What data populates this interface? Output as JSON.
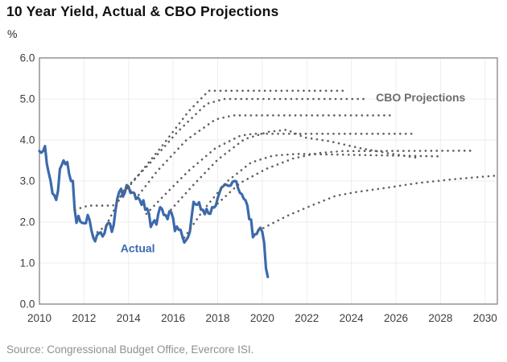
{
  "header": {
    "title": "10 Year Yield, Actual & CBO Projections",
    "unit": "%"
  },
  "footer": {
    "source": "Source: Congressional Budget Office, Evercore ISI."
  },
  "colors": {
    "actual": "#3b6aad",
    "projection": "#5f5f5f",
    "grid": "#ededed",
    "plot_border": "#999999",
    "axis_text": "#3f3f3f",
    "title_text": "#111111",
    "source_text": "#8f8f8f",
    "cbo_label": "#6e6e6e"
  },
  "chart_data": {
    "type": "line",
    "title": "10 Year Yield, Actual & CBO Projections",
    "xlabel": "",
    "ylabel": "%",
    "xlim": [
      2010,
      2030.55
    ],
    "ylim": [
      0,
      6
    ],
    "grid": true,
    "legend_position": "none",
    "x_ticks": [
      2010,
      2012,
      2014,
      2016,
      2018,
      2020,
      2022,
      2024,
      2026,
      2028,
      2030
    ],
    "y_ticks": [
      0,
      1,
      2,
      3,
      4,
      5,
      6
    ],
    "y_tick_labels": [
      "0.0",
      "1.0",
      "2.0",
      "3.0",
      "4.0",
      "5.0",
      "6.0"
    ],
    "annotations": [
      {
        "id": "actual-label",
        "text": "Actual",
        "x": 2013.64,
        "y": 1.26,
        "color_key": "actual"
      },
      {
        "id": "cbo-projections-label",
        "text": "CBO Projections",
        "x": 2025.1,
        "y": 4.94,
        "color_key": "cbo_label"
      }
    ],
    "series": [
      {
        "name": "Actual",
        "style": "solid",
        "x_start": 2010.0,
        "x_step": 0.0833333,
        "values": [
          3.73,
          3.69,
          3.73,
          3.85,
          3.42,
          3.2,
          3.01,
          2.7,
          2.65,
          2.54,
          2.76,
          3.29,
          3.39,
          3.5,
          3.41,
          3.46,
          3.17,
          3.0,
          3.0,
          2.3,
          1.98,
          2.15,
          2.01,
          1.98,
          1.97,
          1.97,
          2.17,
          2.05,
          1.8,
          1.62,
          1.53,
          1.68,
          1.72,
          1.75,
          1.65,
          1.72,
          1.91,
          1.98,
          1.96,
          1.76,
          1.93,
          2.3,
          2.58,
          2.74,
          2.81,
          2.62,
          2.72,
          2.9,
          2.86,
          2.71,
          2.72,
          2.71,
          2.56,
          2.6,
          2.54,
          2.42,
          2.53,
          2.3,
          2.33,
          2.21,
          1.88,
          1.98,
          2.04,
          1.94,
          2.2,
          2.36,
          2.32,
          2.17,
          2.17,
          2.07,
          2.26,
          2.24,
          2.09,
          1.78,
          1.89,
          1.81,
          1.81,
          1.64,
          1.5,
          1.56,
          1.63,
          1.76,
          2.14,
          2.49,
          2.43,
          2.42,
          2.48,
          2.3,
          2.3,
          2.19,
          2.32,
          2.21,
          2.2,
          2.36,
          2.35,
          2.4,
          2.58,
          2.72,
          2.84,
          2.87,
          2.92,
          2.9,
          2.88,
          2.89,
          2.98,
          3.0,
          2.99,
          2.82,
          2.71,
          2.68,
          2.57,
          2.53,
          2.4,
          2.07,
          2.06,
          1.63,
          1.7,
          1.71,
          1.81,
          1.86,
          1.76,
          1.5,
          0.87,
          0.66
        ]
      },
      {
        "name": "CBO projection 2012",
        "style": "dotted",
        "points": [
          [
            2011.6,
            2.3
          ],
          [
            2012.2,
            2.4
          ],
          [
            2013.3,
            2.4
          ],
          [
            2014.3,
            3.05
          ],
          [
            2015.5,
            3.85
          ],
          [
            2016.7,
            4.7
          ],
          [
            2017.6,
            5.2
          ],
          [
            2023.7,
            5.2
          ]
        ]
      },
      {
        "name": "CBO projection 2013",
        "style": "dotted",
        "points": [
          [
            2012.4,
            1.67
          ],
          [
            2013.0,
            1.92
          ],
          [
            2013.8,
            2.78
          ],
          [
            2014.9,
            3.4
          ],
          [
            2016.2,
            4.2
          ],
          [
            2017.5,
            4.88
          ],
          [
            2018.3,
            5.0
          ],
          [
            2024.6,
            5.0
          ]
        ]
      },
      {
        "name": "CBO projection 2014",
        "style": "dotted",
        "points": [
          [
            2013.9,
            2.85
          ],
          [
            2014.4,
            2.62
          ],
          [
            2015.3,
            3.25
          ],
          [
            2016.6,
            4.0
          ],
          [
            2017.9,
            4.5
          ],
          [
            2018.7,
            4.6
          ],
          [
            2025.8,
            4.6
          ]
        ]
      },
      {
        "name": "CBO projection 2015",
        "style": "dotted",
        "points": [
          [
            2014.8,
            2.2
          ],
          [
            2015.6,
            2.65
          ],
          [
            2016.7,
            3.25
          ],
          [
            2017.9,
            3.8
          ],
          [
            2019.0,
            4.1
          ],
          [
            2019.6,
            4.15
          ],
          [
            2026.7,
            4.15
          ]
        ]
      },
      {
        "name": "CBO projection 2016",
        "style": "dotted",
        "points": [
          [
            2015.9,
            2.3
          ],
          [
            2016.9,
            2.9
          ],
          [
            2018.0,
            3.52
          ],
          [
            2019.2,
            4.02
          ],
          [
            2020.3,
            4.2
          ],
          [
            2021.1,
            4.25
          ],
          [
            2021.9,
            4.06
          ],
          [
            2023.0,
            3.97
          ],
          [
            2024.4,
            3.8
          ],
          [
            2025.6,
            3.68
          ],
          [
            2026.9,
            3.57
          ]
        ]
      },
      {
        "name": "CBO projection 2017",
        "style": "dotted",
        "points": [
          [
            2016.5,
            1.62
          ],
          [
            2017.3,
            2.25
          ],
          [
            2018.4,
            2.98
          ],
          [
            2019.5,
            3.45
          ],
          [
            2020.5,
            3.62
          ],
          [
            2021.6,
            3.66
          ],
          [
            2028.0,
            3.6
          ]
        ]
      },
      {
        "name": "CBO projection 2018",
        "style": "dotted",
        "points": [
          [
            2018.0,
            2.45
          ],
          [
            2019.0,
            2.95
          ],
          [
            2020.2,
            3.3
          ],
          [
            2021.4,
            3.55
          ],
          [
            2022.5,
            3.68
          ],
          [
            2023.6,
            3.73
          ],
          [
            2029.5,
            3.74
          ]
        ]
      },
      {
        "name": "CBO projection 2020",
        "style": "dotted",
        "points": [
          [
            2019.83,
            1.79
          ],
          [
            2020.5,
            1.98
          ],
          [
            2021.2,
            2.17
          ],
          [
            2022.2,
            2.4
          ],
          [
            2023.3,
            2.64
          ],
          [
            2024.2,
            2.73
          ],
          [
            2025.5,
            2.83
          ],
          [
            2027.0,
            2.95
          ],
          [
            2028.5,
            3.04
          ],
          [
            2030.45,
            3.13
          ]
        ]
      }
    ]
  }
}
